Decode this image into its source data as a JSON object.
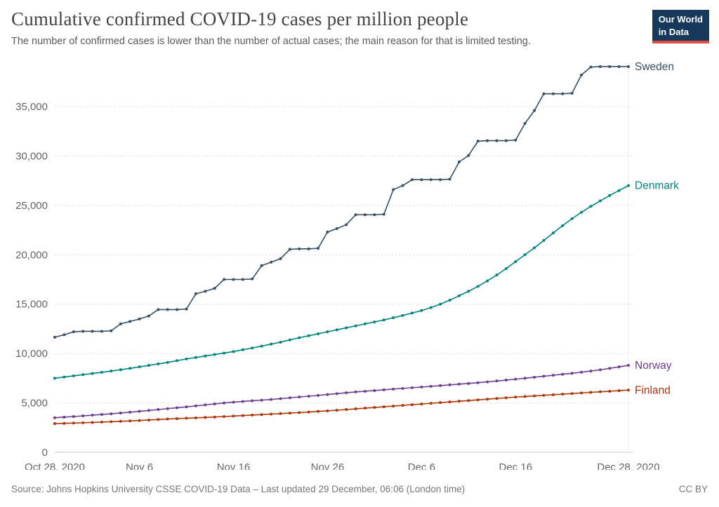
{
  "header": {
    "title": "Cumulative confirmed COVID-19 cases per million people",
    "subtitle": "The number of confirmed cases is lower than the number of actual cases; the main reason for that is limited testing."
  },
  "logo": {
    "line1": "Our World",
    "line2": "in Data",
    "bg_color": "#173a5c",
    "stripe_color": "#dd4b43"
  },
  "footer": {
    "source": "Source: Johns Hopkins University CSSE COVID-19 Data – Last updated 29 December, 06:06 (London time)",
    "license": "CC BY"
  },
  "chart_data": {
    "type": "line",
    "title": "Cumulative confirmed COVID-19 cases per million people",
    "xlabel": "",
    "ylabel": "",
    "grid": "horizontal-dashed",
    "legend_position": "right-of-line-end",
    "ylim": [
      0,
      40000
    ],
    "y_ticks": [
      0,
      5000,
      10000,
      15000,
      20000,
      25000,
      30000,
      35000
    ],
    "x_range_days": 61,
    "x_tick_days": [
      0,
      9,
      19,
      29,
      39,
      49,
      61
    ],
    "x_tick_labels": [
      "Oct 28, 2020",
      "Nov 6",
      "Nov 16",
      "Nov 26",
      "Dec 6",
      "Dec 16",
      "Dec 28, 2020"
    ],
    "series": [
      {
        "name": "Sweden",
        "color": "#384e62",
        "values": [
          11650,
          11900,
          12200,
          12250,
          12250,
          12250,
          12300,
          13000,
          13250,
          13500,
          13800,
          14450,
          14450,
          14450,
          14500,
          16050,
          16300,
          16600,
          17500,
          17500,
          17500,
          17550,
          18900,
          19250,
          19600,
          20550,
          20600,
          20600,
          20650,
          22300,
          22650,
          23050,
          24050,
          24050,
          24050,
          24100,
          26600,
          27000,
          27600,
          27600,
          27600,
          27600,
          27650,
          29400,
          30050,
          31500,
          31550,
          31550,
          31550,
          31600,
          33300,
          34600,
          36300,
          36300,
          36300,
          36350,
          38200,
          39000,
          39050,
          39050,
          39050,
          39050
        ]
      },
      {
        "name": "Denmark",
        "color": "#00847e",
        "values": [
          7500,
          7620,
          7740,
          7860,
          7980,
          8100,
          8230,
          8360,
          8500,
          8650,
          8800,
          8950,
          9100,
          9280,
          9450,
          9600,
          9750,
          9900,
          10050,
          10200,
          10380,
          10560,
          10750,
          10950,
          11150,
          11380,
          11600,
          11800,
          12000,
          12200,
          12400,
          12600,
          12800,
          13000,
          13200,
          13400,
          13620,
          13850,
          14100,
          14350,
          14650,
          15000,
          15400,
          15850,
          16300,
          16800,
          17350,
          17950,
          18600,
          19300,
          20000,
          20700,
          21450,
          22200,
          22950,
          23650,
          24300,
          24900,
          25450,
          26000,
          26500,
          27000
        ]
      },
      {
        "name": "Norway",
        "color": "#6d3e91",
        "values": [
          3500,
          3560,
          3620,
          3690,
          3760,
          3830,
          3900,
          3980,
          4060,
          4150,
          4240,
          4330,
          4420,
          4510,
          4600,
          4700,
          4800,
          4900,
          4990,
          5080,
          5150,
          5220,
          5280,
          5350,
          5430,
          5520,
          5600,
          5680,
          5760,
          5850,
          5940,
          6030,
          6110,
          6180,
          6250,
          6330,
          6400,
          6470,
          6540,
          6610,
          6680,
          6750,
          6830,
          6900,
          6970,
          7050,
          7130,
          7220,
          7310,
          7400,
          7500,
          7600,
          7700,
          7800,
          7900,
          8000,
          8110,
          8230,
          8350,
          8500,
          8650,
          8800
        ]
      },
      {
        "name": "Finland",
        "color": "#b13507",
        "values": [
          2900,
          2930,
          2960,
          2990,
          3020,
          3060,
          3100,
          3140,
          3180,
          3220,
          3270,
          3320,
          3370,
          3410,
          3450,
          3490,
          3530,
          3570,
          3620,
          3670,
          3720,
          3770,
          3820,
          3870,
          3920,
          3970,
          4020,
          4080,
          4140,
          4200,
          4260,
          4330,
          4400,
          4470,
          4540,
          4610,
          4680,
          4750,
          4820,
          4890,
          4960,
          5030,
          5100,
          5170,
          5240,
          5310,
          5380,
          5450,
          5520,
          5590,
          5650,
          5710,
          5770,
          5830,
          5890,
          5950,
          6010,
          6070,
          6130,
          6180,
          6240,
          6300
        ]
      }
    ]
  }
}
